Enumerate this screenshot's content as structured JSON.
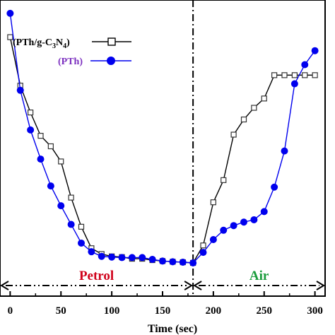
{
  "chart_data": {
    "type": "line",
    "title": "",
    "xlabel": "Time (sec)",
    "ylabel": "",
    "xlim": [
      -10,
      310
    ],
    "ylim": [
      0,
      100
    ],
    "x_ticks": [
      0,
      50,
      100,
      150,
      200,
      250,
      300
    ],
    "grid": false,
    "legend_position": "top-left",
    "divider_x": 180,
    "regions": [
      {
        "label": "Petrol",
        "color": "#d0021b",
        "x_start": -10,
        "x_end": 180
      },
      {
        "label": "Air",
        "color": "#1a9c3c",
        "x_start": 180,
        "x_end": 310
      }
    ],
    "series": [
      {
        "name": "(PTh/g-C3N4)",
        "name_parts": {
          "pre": "(PTh/g-C",
          "sub1": "3",
          "mid": "N",
          "sub2": "4",
          "post": ")"
        },
        "color": "#000000",
        "marker": "open-square",
        "x": [
          0,
          10,
          20,
          30,
          40,
          50,
          60,
          70,
          80,
          90,
          100,
          110,
          120,
          130,
          140,
          150,
          160,
          170,
          180,
          190,
          200,
          210,
          220,
          230,
          240,
          250,
          260,
          270,
          280,
          290,
          300
        ],
        "y": [
          96.8,
          76,
          64.5,
          54.5,
          50,
          43.5,
          28,
          15.5,
          6.3,
          3.8,
          2.8,
          2.5,
          1.8,
          1.8,
          1.2,
          0.8,
          0.5,
          0.3,
          0,
          7.5,
          26,
          35.5,
          55,
          61.5,
          66.5,
          70.5,
          80.5,
          80.5,
          80.5,
          80.5,
          80.5
        ]
      },
      {
        "name": "(PTh)",
        "color": "#0000ee",
        "marker": "filled-circle",
        "x": [
          0,
          10,
          20,
          30,
          40,
          50,
          60,
          70,
          80,
          90,
          100,
          110,
          120,
          130,
          140,
          150,
          160,
          170,
          180,
          190,
          200,
          210,
          220,
          230,
          240,
          250,
          260,
          270,
          280,
          290,
          300
        ],
        "y": [
          107,
          74,
          57,
          44.5,
          33,
          24.5,
          16.5,
          8.5,
          4.8,
          2.8,
          2.5,
          2.3,
          2.3,
          2.3,
          1.5,
          0.8,
          0.5,
          0.3,
          0,
          4.5,
          10,
          14,
          16,
          17.5,
          18.5,
          22,
          32.5,
          48,
          76.8,
          85,
          91
        ]
      }
    ]
  }
}
